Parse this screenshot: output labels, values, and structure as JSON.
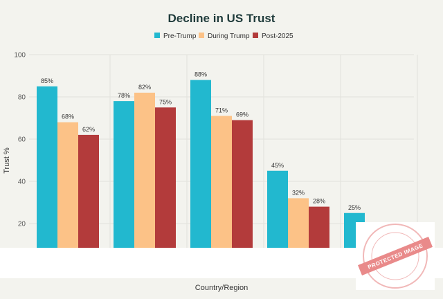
{
  "chart_data": {
    "type": "bar",
    "title": "Decline in US Trust",
    "xlabel": "Country/Region",
    "ylabel": "Trust %",
    "ylim": [
      8,
      100
    ],
    "yticks": [
      20,
      40,
      60,
      80,
      100
    ],
    "grid": true,
    "legend_placement": "top-center",
    "categories_visible": 5,
    "series": [
      {
        "name": "Pre-Trump",
        "color": "#22b8cf",
        "values": [
          85,
          78,
          88,
          45,
          25
        ]
      },
      {
        "name": "During Trump",
        "color": "#fcc287",
        "values": [
          68,
          82,
          71,
          32,
          null
        ]
      },
      {
        "name": "Post-2025",
        "color": "#b33b3b",
        "values": [
          62,
          75,
          69,
          28,
          null
        ]
      }
    ],
    "value_suffix": "%"
  },
  "watermark": {
    "text": "PROTECTED IMAGE",
    "color": "#e28c8c"
  }
}
